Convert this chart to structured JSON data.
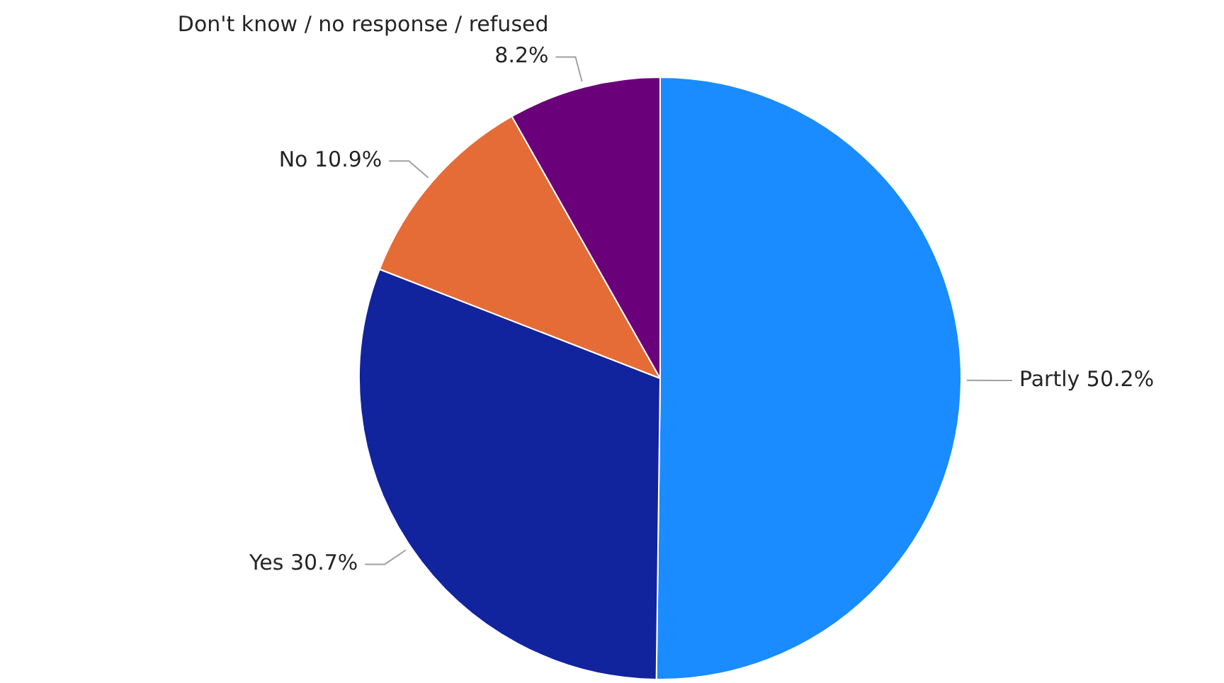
{
  "chart_data": {
    "type": "pie",
    "categories": [
      "Partly",
      "Yes",
      "No",
      "Don't know / no response / refused"
    ],
    "values": [
      50.2,
      30.7,
      10.9,
      8.2
    ],
    "value_labels": [
      "50.2%",
      "30.7%",
      "10.9%",
      "8.2%"
    ],
    "colors": [
      "#1a8cff",
      "#12239e",
      "#e66c37",
      "#6b007b"
    ],
    "legend": false
  }
}
